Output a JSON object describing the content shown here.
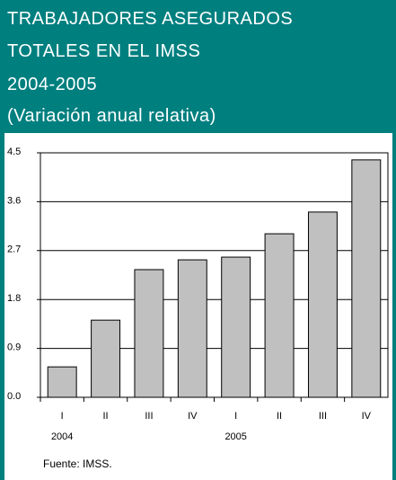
{
  "chart_data": {
    "type": "bar",
    "title": [
      "TRABAJADORES ASEGURADOS",
      "TOTALES EN EL IMSS",
      "2004-2005",
      "(Variación anual relativa)"
    ],
    "categories": [
      "I",
      "II",
      "III",
      "IV",
      "I",
      "II",
      "III",
      "IV"
    ],
    "group_labels": [
      "2004",
      "2005"
    ],
    "values": [
      0.56,
      1.42,
      2.35,
      2.53,
      2.58,
      3.01,
      3.41,
      4.37
    ],
    "color": "#c0c0c0",
    "ylim": [
      0,
      4.5
    ],
    "yticks": [
      {
        "value": 0,
        "label": "0.0"
      },
      0.9,
      1.8,
      2.7,
      3.6,
      4.5
    ],
    "grid": true,
    "source": "Fuente: IMSS."
  }
}
